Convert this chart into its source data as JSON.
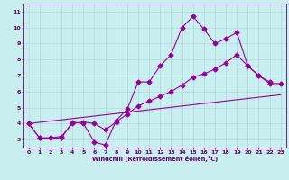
{
  "xlabel": "Windchill (Refroidissement éolien,°C)",
  "bg_color": "#c8eef0",
  "grid_color": "#b0d8dc",
  "line_color": "#990099",
  "xlim": [
    -0.5,
    23.5
  ],
  "ylim": [
    2.5,
    11.5
  ],
  "xticks": [
    0,
    1,
    2,
    3,
    4,
    5,
    6,
    7,
    8,
    9,
    10,
    11,
    12,
    13,
    14,
    15,
    16,
    17,
    18,
    19,
    20,
    21,
    22,
    23
  ],
  "yticks": [
    3,
    4,
    5,
    6,
    7,
    8,
    9,
    10,
    11
  ],
  "line1_x": [
    0,
    1,
    2,
    3,
    4,
    5,
    6,
    7,
    8,
    9,
    10,
    11,
    12,
    13,
    14,
    15,
    16,
    17,
    18,
    19,
    20,
    21,
    22
  ],
  "line1_y": [
    4.0,
    3.1,
    3.1,
    3.1,
    4.1,
    4.0,
    2.85,
    2.65,
    4.2,
    4.9,
    6.6,
    6.6,
    7.6,
    8.3,
    10.0,
    10.7,
    9.9,
    9.0,
    9.3,
    9.7,
    7.6,
    7.0,
    6.6
  ],
  "line2_x": [
    0,
    1,
    2,
    3,
    4,
    5,
    6,
    7,
    8,
    9,
    10,
    11,
    12,
    13,
    14,
    15,
    16,
    17,
    18,
    19,
    20,
    21,
    22,
    23
  ],
  "line2_y": [
    4.0,
    3.1,
    3.1,
    3.2,
    4.0,
    4.1,
    4.0,
    3.6,
    4.1,
    4.6,
    5.1,
    5.4,
    5.7,
    6.0,
    6.4,
    6.9,
    7.1,
    7.4,
    7.8,
    8.3,
    7.6,
    7.0,
    6.5,
    6.5
  ],
  "line3_x": [
    0,
    23
  ],
  "line3_y": [
    4.0,
    5.8
  ],
  "markersize": 2.5,
  "linewidth": 0.8
}
